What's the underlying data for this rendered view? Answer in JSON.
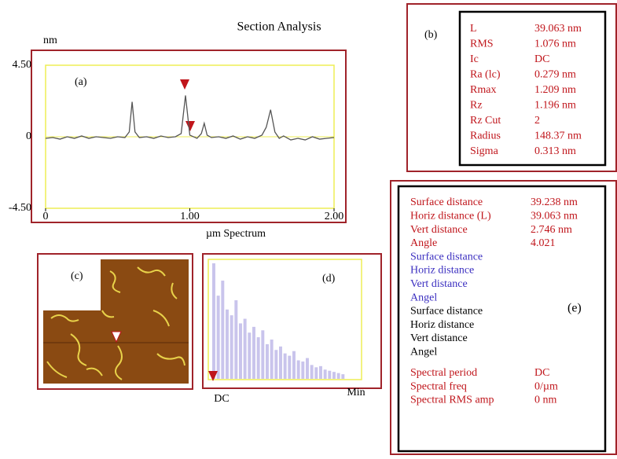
{
  "title": "Section Analysis",
  "chart_data": {
    "type": "line",
    "label": "(a)",
    "y_unit": "nm",
    "x_label": "µm Spectrum",
    "color": "#555555",
    "x": [
      0,
      0.05,
      0.1,
      0.15,
      0.2,
      0.25,
      0.3,
      0.35,
      0.4,
      0.45,
      0.5,
      0.55,
      0.58,
      0.6,
      0.62,
      0.65,
      0.7,
      0.75,
      0.8,
      0.85,
      0.9,
      0.94,
      0.97,
      1.0,
      1.05,
      1.08,
      1.1,
      1.12,
      1.15,
      1.2,
      1.25,
      1.3,
      1.35,
      1.4,
      1.45,
      1.5,
      1.53,
      1.56,
      1.59,
      1.62,
      1.65,
      1.7,
      1.75,
      1.8,
      1.85,
      1.9,
      1.95,
      2.0
    ],
    "values": [
      -0.1,
      -0.05,
      -0.15,
      0,
      -0.1,
      0.05,
      -0.1,
      0,
      -0.05,
      -0.1,
      0,
      -0.05,
      0.3,
      2.2,
      0.3,
      -0.05,
      0,
      -0.1,
      0.05,
      -0.05,
      0,
      0.2,
      2.6,
      0.1,
      -0.1,
      0.2,
      0.85,
      0.1,
      -0.05,
      0,
      -0.1,
      0.05,
      -0.15,
      0,
      -0.1,
      0.1,
      0.6,
      1.7,
      0.3,
      -0.1,
      0.05,
      -0.2,
      -0.1,
      -0.2,
      0,
      -0.15,
      -0.1,
      -0.05
    ],
    "xlim": [
      0,
      2
    ],
    "ylim": [
      -4.5,
      4.5
    ],
    "xticks": [
      0,
      {
        "value": 1,
        "label": "1.00"
      },
      {
        "value": 2,
        "label": "2.00"
      }
    ],
    "yticks": [
      {
        "value": 4.5,
        "label": "4.50"
      },
      0,
      {
        "value": -4.5,
        "label": "-4.50"
      }
    ]
  },
  "image_panel": {
    "label": "(c)"
  },
  "spectrum": {
    "label": "(d)",
    "start_label": "DC",
    "end_label": "Min",
    "ylim": [
      0,
      100
    ],
    "values": [
      100,
      72,
      85,
      60,
      55,
      68,
      48,
      52,
      40,
      45,
      36,
      42,
      30,
      34,
      25,
      28,
      22,
      20,
      24,
      16,
      15,
      18,
      12,
      10,
      11,
      8,
      7,
      6,
      5,
      4
    ]
  },
  "stats": {
    "label": "(b)",
    "rows": [
      [
        "L",
        "39.063 nm"
      ],
      [
        "RMS",
        "1.076 nm"
      ],
      [
        "Ic",
        "DC"
      ],
      [
        "Ra (lc)",
        "0.279 nm"
      ],
      [
        "Rmax",
        "1.209 nm"
      ],
      [
        "Rz",
        "1.196 nm"
      ],
      [
        "Rz Cut",
        "2"
      ],
      [
        "Radius",
        "148.37 nm"
      ],
      [
        "Sigma",
        "0.313 nm"
      ]
    ]
  },
  "measurements": {
    "label": "(e)",
    "red_rows": [
      [
        "Surface distance",
        "39.238 nm"
      ],
      [
        "Horiz distance (L)",
        "39.063 nm"
      ],
      [
        "Vert distance",
        "2.746 nm"
      ],
      [
        "Angle",
        "4.021"
      ]
    ],
    "blue_rows": [
      "Surface distance",
      "Horiz distance",
      "Vert distance",
      "Angel"
    ],
    "black_rows": [
      "Surface distance",
      "Horiz distance",
      "Vert distance",
      "Angel"
    ],
    "spectral_rows": [
      [
        "Spectral period",
        "DC"
      ],
      [
        "Spectral freq",
        "0/µm"
      ],
      [
        "Spectral RMS amp",
        "0 nm"
      ]
    ]
  }
}
